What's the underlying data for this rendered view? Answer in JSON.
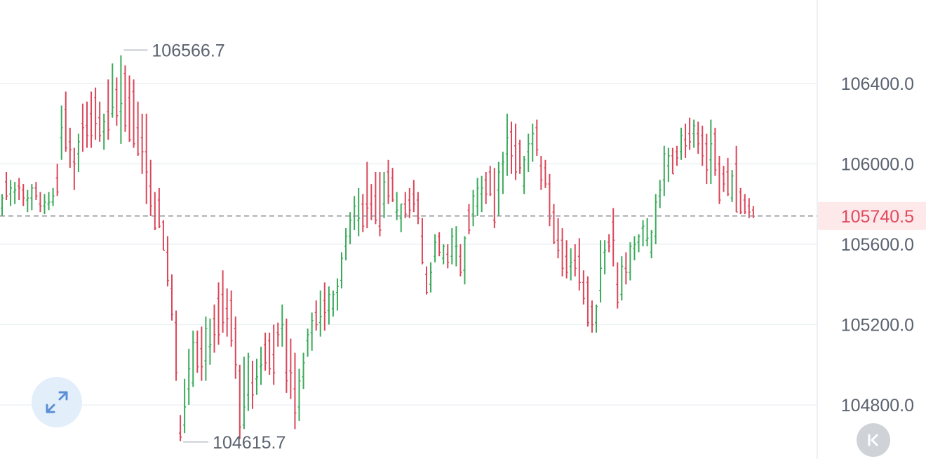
{
  "chart_data": {
    "type": "ohlc",
    "y_axis": {
      "ticks": [
        "106400.0",
        "106000.0",
        "105600.0",
        "105200.0",
        "104800.0"
      ],
      "tick_values": [
        106400,
        106000,
        105600,
        105200,
        104800
      ]
    },
    "current_price": {
      "label": "105740.5",
      "value": 105740.5
    },
    "high_marker": {
      "label": "106566.7",
      "value": 106566.7
    },
    "low_marker": {
      "label": "104615.7",
      "value": 104615.7
    },
    "colors": {
      "up": "#3aaa5a",
      "down": "#d9475a",
      "grid": "#eef1f5",
      "axis_text": "#5b6370",
      "price_tag_bg": "#fde8ea",
      "price_tag_text": "#e04a5e"
    },
    "bars": [
      [
        105780,
        105850,
        105740,
        105830
      ],
      [
        105910,
        105960,
        105820,
        105840
      ],
      [
        105850,
        105920,
        105790,
        105880
      ],
      [
        105860,
        105910,
        105800,
        105870
      ],
      [
        105890,
        105930,
        105820,
        105880
      ],
      [
        105870,
        105900,
        105790,
        105830
      ],
      [
        105820,
        105870,
        105760,
        105830
      ],
      [
        105830,
        105900,
        105770,
        105880
      ],
      [
        105880,
        105910,
        105820,
        105840
      ],
      [
        105800,
        105860,
        105760,
        105790
      ],
      [
        105790,
        105850,
        105750,
        105810
      ],
      [
        105800,
        105860,
        105770,
        105810
      ],
      [
        105810,
        105880,
        105790,
        105840
      ],
      [
        105930,
        106000,
        105840,
        105860
      ],
      [
        106130,
        106290,
        106020,
        106180
      ],
      [
        106270,
        106360,
        106060,
        106080
      ],
      [
        106110,
        106180,
        105980,
        106070
      ],
      [
        106010,
        106080,
        105870,
        106000
      ],
      [
        106050,
        106150,
        105960,
        106110
      ],
      [
        106200,
        106300,
        106060,
        106180
      ],
      [
        106190,
        106310,
        106080,
        106140
      ],
      [
        106250,
        106360,
        106080,
        106140
      ],
      [
        106330,
        106380,
        106120,
        106200
      ],
      [
        106230,
        106310,
        106110,
        106140
      ],
      [
        106160,
        106250,
        106070,
        106210
      ],
      [
        106260,
        106420,
        106120,
        106170
      ],
      [
        106250,
        106500,
        106230,
        106280
      ],
      [
        106370,
        106430,
        106190,
        106240
      ],
      [
        106260,
        106540,
        106100,
        106300
      ],
      [
        106450,
        106490,
        106160,
        106190
      ],
      [
        106330,
        106440,
        106110,
        106120
      ],
      [
        106360,
        106420,
        106080,
        106100
      ],
      [
        106180,
        106310,
        106040,
        106050
      ],
      [
        106130,
        106250,
        105950,
        106060
      ],
      [
        106060,
        106250,
        105800,
        105960
      ],
      [
        105890,
        106020,
        105740,
        105790
      ],
      [
        105740,
        105860,
        105670,
        105680
      ],
      [
        105820,
        105880,
        105680,
        105690
      ],
      [
        105710,
        105720,
        105570,
        105570
      ],
      [
        105560,
        105640,
        105390,
        105420
      ],
      [
        105380,
        105450,
        105220,
        105250
      ],
      [
        105210,
        105270,
        104920,
        104960
      ],
      [
        104660,
        104750,
        104620,
        104640
      ],
      [
        104700,
        104930,
        104660,
        104790
      ],
      [
        104880,
        105080,
        104800,
        104980
      ],
      [
        104910,
        105170,
        104890,
        105110
      ],
      [
        105110,
        105170,
        104960,
        104990
      ],
      [
        105080,
        105190,
        104920,
        104990
      ],
      [
        105020,
        105240,
        104920,
        105180
      ],
      [
        105090,
        105230,
        105000,
        105100
      ],
      [
        105230,
        105300,
        105060,
        105150
      ],
      [
        105330,
        105410,
        105100,
        105150
      ],
      [
        105350,
        105470,
        105160,
        105210
      ],
      [
        105280,
        105380,
        105140,
        105230
      ],
      [
        105320,
        105370,
        105090,
        105120
      ],
      [
        105180,
        105240,
        104930,
        105000
      ],
      [
        104970,
        105000,
        104630,
        104690
      ],
      [
        104700,
        105040,
        104680,
        104790
      ],
      [
        104850,
        105060,
        104770,
        105040
      ],
      [
        104910,
        105020,
        104780,
        104850
      ],
      [
        104930,
        105030,
        104850,
        104940
      ],
      [
        104990,
        105090,
        104900,
        105000
      ],
      [
        105100,
        105160,
        104970,
        105010
      ],
      [
        105120,
        105160,
        104950,
        104980
      ],
      [
        105050,
        105200,
        104900,
        104960
      ],
      [
        105160,
        105210,
        105090,
        105150
      ],
      [
        105180,
        105300,
        105090,
        105200
      ],
      [
        104960,
        105230,
        104860,
        104920
      ],
      [
        104970,
        105130,
        104830,
        104960
      ],
      [
        104880,
        105060,
        104680,
        104760
      ],
      [
        104790,
        104980,
        104720,
        104920
      ],
      [
        104940,
        105060,
        104880,
        105010
      ],
      [
        105120,
        105180,
        105040,
        105150
      ],
      [
        105160,
        105260,
        105070,
        105220
      ],
      [
        105260,
        105320,
        105170,
        105200
      ],
      [
        105210,
        105370,
        105140,
        105240
      ],
      [
        105320,
        105410,
        105170,
        105260
      ],
      [
        105270,
        105390,
        105200,
        105350
      ],
      [
        105280,
        105370,
        105240,
        105350
      ],
      [
        105360,
        105430,
        105270,
        105390
      ],
      [
        105420,
        105560,
        105380,
        105530
      ],
      [
        105590,
        105680,
        105520,
        105640
      ],
      [
        105640,
        105760,
        105600,
        105720
      ],
      [
        105740,
        105840,
        105670,
        105790
      ],
      [
        105720,
        105880,
        105640,
        105730
      ],
      [
        105800,
        105850,
        105660,
        105690
      ],
      [
        105800,
        106010,
        105680,
        105780
      ],
      [
        105800,
        105900,
        105720,
        105740
      ],
      [
        105840,
        105960,
        105700,
        105720
      ],
      [
        105690,
        105960,
        105640,
        105670
      ],
      [
        105800,
        105960,
        105730,
        105910
      ],
      [
        105960,
        106020,
        105800,
        105840
      ],
      [
        105930,
        105980,
        105810,
        105820
      ],
      [
        105760,
        105860,
        105720,
        105770
      ],
      [
        105730,
        105800,
        105660,
        105800
      ],
      [
        105800,
        105860,
        105730,
        105750
      ],
      [
        105820,
        105880,
        105730,
        105770
      ],
      [
        105850,
        105920,
        105760,
        105800
      ],
      [
        105820,
        105860,
        105700,
        105730
      ],
      [
        105640,
        105730,
        105500,
        105510
      ],
      [
        105450,
        105490,
        105350,
        105360
      ],
      [
        105400,
        105510,
        105360,
        105460
      ],
      [
        105540,
        105650,
        105510,
        105610
      ],
      [
        105640,
        105660,
        105540,
        105560
      ],
      [
        105530,
        105600,
        105500,
        105590
      ],
      [
        105550,
        105600,
        105480,
        105510
      ],
      [
        105540,
        105680,
        105500,
        105640
      ],
      [
        105590,
        105690,
        105490,
        105590
      ],
      [
        105540,
        105600,
        105440,
        105460
      ],
      [
        105470,
        105640,
        105400,
        105630
      ],
      [
        105770,
        105800,
        105650,
        105670
      ],
      [
        105750,
        105870,
        105690,
        105840
      ],
      [
        105790,
        105930,
        105740,
        105880
      ],
      [
        105850,
        105940,
        105760,
        105880
      ],
      [
        105920,
        105960,
        105800,
        105850
      ],
      [
        105960,
        105990,
        105840,
        105850
      ],
      [
        105720,
        105980,
        105680,
        105710
      ],
      [
        105870,
        106010,
        105740,
        105960
      ],
      [
        106000,
        106060,
        105850,
        106010
      ],
      [
        106050,
        106250,
        105940,
        106130
      ],
      [
        106160,
        106210,
        105950,
        106040
      ],
      [
        106090,
        106200,
        105920,
        105960
      ],
      [
        106100,
        106120,
        105950,
        105980
      ],
      [
        105890,
        106040,
        105850,
        106020
      ],
      [
        106060,
        106150,
        105960,
        106100
      ],
      [
        106100,
        106200,
        106010,
        106150
      ],
      [
        106180,
        106220,
        106040,
        106070
      ],
      [
        105990,
        106040,
        105870,
        105920
      ],
      [
        105980,
        106020,
        105880,
        105900
      ],
      [
        105900,
        105950,
        105690,
        105730
      ],
      [
        105760,
        105800,
        105600,
        105610
      ],
      [
        105620,
        105730,
        105530,
        105570
      ],
      [
        105620,
        105680,
        105440,
        105480
      ],
      [
        105540,
        105620,
        105430,
        105460
      ],
      [
        105490,
        105580,
        105420,
        105510
      ],
      [
        105520,
        105600,
        105440,
        105480
      ],
      [
        105540,
        105630,
        105370,
        105410
      ],
      [
        105410,
        105470,
        105300,
        105330
      ],
      [
        105410,
        105440,
        105190,
        105210
      ],
      [
        105290,
        105320,
        105160,
        105200
      ],
      [
        105210,
        105300,
        105160,
        105290
      ],
      [
        105370,
        105620,
        105310,
        105480
      ],
      [
        105560,
        105620,
        105450,
        105570
      ],
      [
        105610,
        105650,
        105560,
        105590
      ],
      [
        105710,
        105780,
        105490,
        105620
      ],
      [
        105400,
        105510,
        105280,
        105310
      ],
      [
        105350,
        105540,
        105320,
        105490
      ],
      [
        105480,
        105560,
        105400,
        105460
      ],
      [
        105460,
        105610,
        105420,
        105590
      ],
      [
        105580,
        105640,
        105520,
        105600
      ],
      [
        105610,
        105650,
        105560,
        105640
      ],
      [
        105680,
        105720,
        105590,
        105690
      ],
      [
        105620,
        105730,
        105590,
        105630
      ],
      [
        105560,
        105670,
        105530,
        105660
      ],
      [
        105640,
        105850,
        105600,
        105810
      ],
      [
        105840,
        105920,
        105780,
        105870
      ],
      [
        105920,
        106090,
        105840,
        106050
      ],
      [
        105990,
        106080,
        105910,
        106040
      ],
      [
        106040,
        106080,
        105950,
        105950
      ],
      [
        106060,
        106090,
        105990,
        106030
      ],
      [
        106060,
        106180,
        106020,
        106140
      ],
      [
        106120,
        106200,
        106030,
        106090
      ],
      [
        106150,
        106230,
        106070,
        106110
      ],
      [
        106150,
        106220,
        106080,
        106190
      ],
      [
        106150,
        106210,
        106050,
        106100
      ],
      [
        106140,
        106190,
        105990,
        106040
      ],
      [
        106100,
        106150,
        105900,
        105970
      ],
      [
        106020,
        106220,
        105900,
        106100
      ],
      [
        106150,
        106180,
        105940,
        105970
      ],
      [
        106000,
        106040,
        105800,
        105820
      ],
      [
        105950,
        105990,
        105860,
        105900
      ],
      [
        105960,
        106030,
        105840,
        105850
      ],
      [
        105830,
        105970,
        105810,
        105940
      ],
      [
        106000,
        106090,
        105760,
        105760
      ],
      [
        105860,
        105880,
        105750,
        105760
      ],
      [
        105820,
        105850,
        105750,
        105760
      ],
      [
        105790,
        105830,
        105730,
        105760
      ],
      [
        105770,
        105790,
        105730,
        105740
      ]
    ]
  },
  "controls": {
    "expand_icon": "expand-arrows-icon",
    "back_icon": "chevron-left-bar-icon"
  }
}
